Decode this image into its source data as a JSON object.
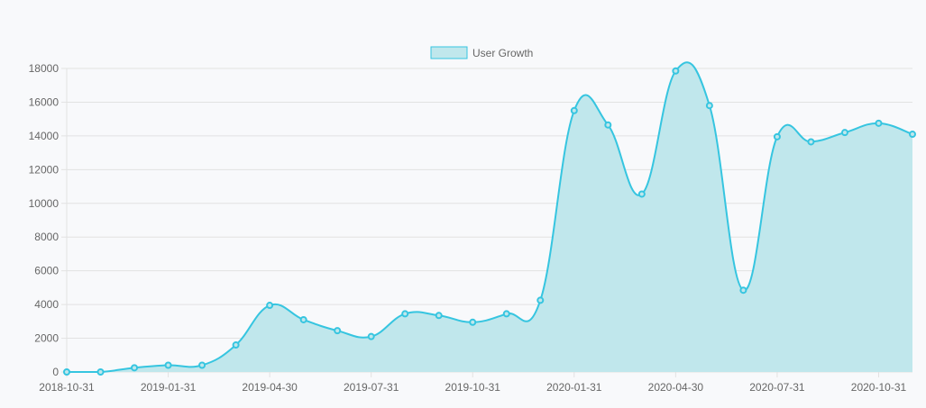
{
  "chart_data": {
    "type": "area",
    "title": "",
    "xlabel": "",
    "ylabel": "",
    "x": [
      "2018-10-31",
      "2018-11-30",
      "2018-12-31",
      "2019-01-31",
      "2019-02-28",
      "2019-03-31",
      "2019-04-30",
      "2019-05-31",
      "2019-06-30",
      "2019-07-31",
      "2019-08-31",
      "2019-09-30",
      "2019-10-31",
      "2019-11-30",
      "2019-12-31",
      "2020-01-31",
      "2020-02-29",
      "2020-03-31",
      "2020-04-30",
      "2020-05-31",
      "2020-06-30",
      "2020-07-31",
      "2020-08-31",
      "2020-09-30",
      "2020-10-31",
      "2020-11-30"
    ],
    "x_tick_labels": [
      "2018-10-31",
      "2019-01-31",
      "2019-04-30",
      "2019-07-31",
      "2019-10-31",
      "2020-01-31",
      "2020-04-30",
      "2020-07-31",
      "2020-10-31"
    ],
    "y_ticks": [
      0,
      2000,
      4000,
      6000,
      8000,
      10000,
      12000,
      14000,
      16000,
      18000
    ],
    "ylim": [
      0,
      18000
    ],
    "series": [
      {
        "name": "User Growth",
        "values": [
          0,
          0,
          250,
          400,
          400,
          1600,
          3950,
          3100,
          2450,
          2100,
          3450,
          3350,
          2950,
          3450,
          4250,
          15500,
          14650,
          10550,
          17850,
          15800,
          4850,
          13950,
          13650,
          14200,
          14750,
          14100
        ]
      }
    ],
    "legend_position": "top",
    "grid": true,
    "colors": {
      "line": "#36c5e0",
      "fill": "#c0e7ec",
      "grid": "#e2e2e2",
      "tick_text": "#666666"
    }
  }
}
